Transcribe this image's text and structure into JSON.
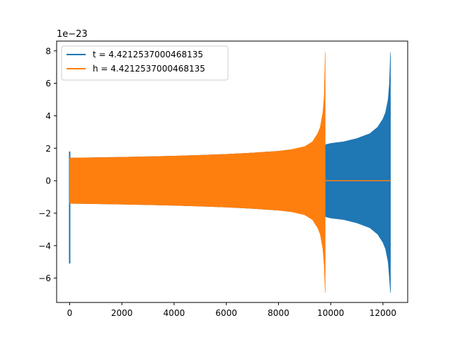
{
  "chart_data": {
    "type": "line",
    "title": "",
    "xlabel": "",
    "ylabel": "",
    "y_scale_label": "1e−23",
    "xlim": [
      -500,
      12950
    ],
    "ylim": [
      -7.5,
      8.6
    ],
    "x_ticks": [
      0,
      2000,
      4000,
      6000,
      8000,
      10000,
      12000
    ],
    "x_tick_labels": [
      "0",
      "2000",
      "4000",
      "6000",
      "8000",
      "10000",
      "12000"
    ],
    "y_ticks": [
      -6,
      -4,
      -2,
      0,
      2,
      4,
      6,
      8
    ],
    "y_tick_labels": [
      "−6",
      "−4",
      "−2",
      "0",
      "2",
      "4",
      "6",
      "8"
    ],
    "grid": false,
    "legend_position": "top-left",
    "series": [
      {
        "name": "t = 4.4212537000468135",
        "color": "#1f77b4",
        "envelope": {
          "x": [
            0,
            1000,
            2000,
            3000,
            4000,
            5000,
            6000,
            7000,
            8000,
            9000,
            9500,
            9800,
            10000,
            10500,
            11000,
            11500,
            11800,
            12000,
            12100,
            12200,
            12250,
            12290
          ],
          "upper": [
            1.4,
            1.42,
            1.45,
            1.48,
            1.52,
            1.57,
            1.63,
            1.71,
            1.82,
            2.0,
            2.15,
            2.22,
            2.3,
            2.4,
            2.6,
            2.9,
            3.3,
            3.8,
            4.2,
            5.0,
            6.0,
            7.9
          ],
          "lower": [
            -1.4,
            -1.42,
            -1.45,
            -1.48,
            -1.52,
            -1.57,
            -1.63,
            -1.71,
            -1.82,
            -2.0,
            -2.15,
            -2.22,
            -2.3,
            -2.4,
            -2.6,
            -2.9,
            -3.3,
            -3.8,
            -4.2,
            -5.0,
            -6.0,
            -6.9
          ]
        },
        "start_spike": {
          "x": 0,
          "max": 1.8,
          "min": -5.1
        }
      },
      {
        "name": "h = 4.4212537000468135",
        "color": "#ff7f0e",
        "envelope": {
          "x": [
            0,
            1000,
            2000,
            3000,
            4000,
            5000,
            6000,
            7000,
            8000,
            8500,
            9000,
            9300,
            9500,
            9600,
            9700,
            9750,
            9790
          ],
          "upper": [
            1.4,
            1.42,
            1.45,
            1.48,
            1.52,
            1.57,
            1.63,
            1.71,
            1.82,
            1.92,
            2.1,
            2.4,
            2.9,
            3.3,
            4.2,
            5.2,
            7.9
          ],
          "lower": [
            -1.4,
            -1.42,
            -1.45,
            -1.48,
            -1.52,
            -1.57,
            -1.63,
            -1.71,
            -1.82,
            -1.92,
            -2.1,
            -2.4,
            -2.9,
            -3.3,
            -4.2,
            -5.2,
            -6.9
          ]
        },
        "flat_after": {
          "x_start": 9790,
          "x_end": 12290,
          "y": 0
        }
      }
    ]
  }
}
